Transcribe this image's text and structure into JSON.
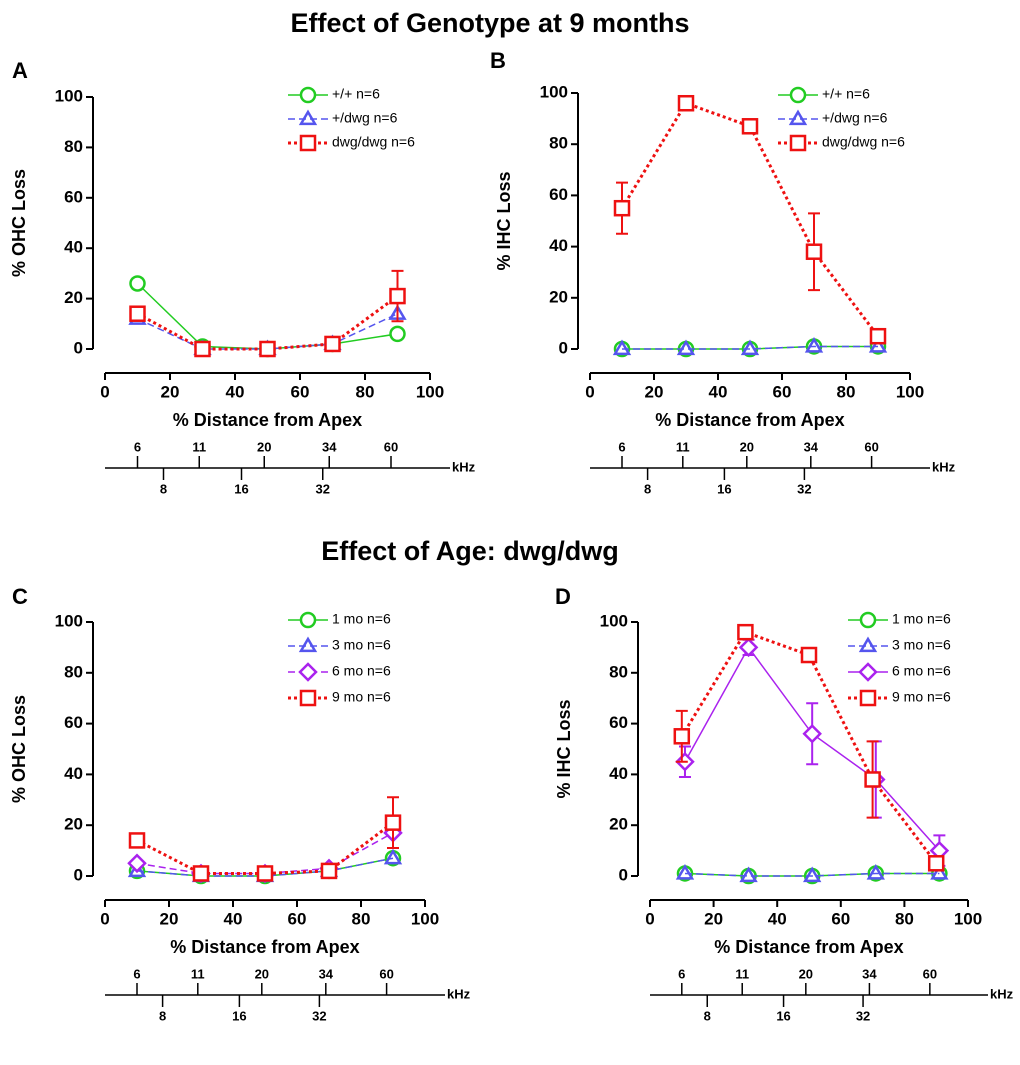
{
  "sections": [
    "Effect of Genotype at 9 months",
    "Effect of Age: dwg/dwg"
  ],
  "chart_data": [
    {
      "type": "line",
      "label": "A",
      "xlabel": "% Distance from Apex",
      "ylabel": "% OHC Loss",
      "xlim": [
        0,
        100
      ],
      "ylim": [
        0,
        100
      ],
      "xticks": [
        0,
        20,
        40,
        60,
        80,
        100
      ],
      "yticks": [
        0,
        20,
        40,
        60,
        80,
        100
      ],
      "khz_axis": {
        "label": "kHz",
        "upper": [
          {
            "value": 10,
            "label": "6"
          },
          {
            "value": 29,
            "label": "11"
          },
          {
            "value": 49,
            "label": "20"
          },
          {
            "value": 69,
            "label": "34"
          },
          {
            "value": 88,
            "label": "60"
          }
        ],
        "lower": [
          {
            "value": 18,
            "label": "8"
          },
          {
            "value": 42,
            "label": "16"
          },
          {
            "value": 67,
            "label": "32"
          }
        ]
      },
      "series": [
        {
          "name": "+/+ n=6",
          "color": "#22cc22",
          "marker": "circle",
          "dash": "solid",
          "x": [
            10,
            30,
            50,
            70,
            90
          ],
          "values": [
            26,
            1,
            0,
            2,
            6
          ],
          "errors": [
            2,
            0,
            0,
            0,
            0
          ]
        },
        {
          "name": "+/dwg n=6",
          "color": "#5555ee",
          "marker": "triangle",
          "dash": "dashed",
          "x": [
            10,
            30,
            50,
            70,
            90
          ],
          "values": [
            12,
            0,
            0,
            2,
            14
          ],
          "errors": [
            0,
            0,
            0,
            0,
            0
          ]
        },
        {
          "name": "dwg/dwg n=6",
          "color": "#ee1111",
          "marker": "square",
          "dash": "dotted",
          "x": [
            10,
            30,
            50,
            70,
            90
          ],
          "values": [
            14,
            0,
            0,
            2,
            21
          ],
          "errors": [
            0,
            0,
            0,
            0,
            10
          ]
        }
      ]
    },
    {
      "type": "line",
      "label": "B",
      "xlabel": "% Distance from Apex",
      "ylabel": "% IHC Loss",
      "xlim": [
        0,
        100
      ],
      "ylim": [
        0,
        100
      ],
      "xticks": [
        0,
        20,
        40,
        60,
        80,
        100
      ],
      "yticks": [
        0,
        20,
        40,
        60,
        80,
        100
      ],
      "khz_axis": {
        "label": "kHz",
        "upper": [
          {
            "value": 10,
            "label": "6"
          },
          {
            "value": 29,
            "label": "11"
          },
          {
            "value": 49,
            "label": "20"
          },
          {
            "value": 69,
            "label": "34"
          },
          {
            "value": 88,
            "label": "60"
          }
        ],
        "lower": [
          {
            "value": 18,
            "label": "8"
          },
          {
            "value": 42,
            "label": "16"
          },
          {
            "value": 67,
            "label": "32"
          }
        ]
      },
      "series": [
        {
          "name": "+/+ n=6",
          "color": "#22cc22",
          "marker": "circle",
          "dash": "solid",
          "x": [
            10,
            30,
            50,
            70,
            90
          ],
          "values": [
            0,
            0,
            0,
            1,
            1
          ],
          "errors": [
            0,
            0,
            0,
            0,
            0
          ]
        },
        {
          "name": "+/dwg n=6",
          "color": "#5555ee",
          "marker": "triangle",
          "dash": "dashed",
          "x": [
            10,
            30,
            50,
            70,
            90
          ],
          "values": [
            0,
            0,
            0,
            1,
            1
          ],
          "errors": [
            0,
            0,
            0,
            0,
            0
          ]
        },
        {
          "name": "dwg/dwg n=6",
          "color": "#ee1111",
          "marker": "square",
          "dash": "dotted",
          "x": [
            10,
            30,
            50,
            70,
            90
          ],
          "values": [
            55,
            96,
            87,
            38,
            5
          ],
          "errors": [
            10,
            0,
            0,
            15,
            0
          ]
        }
      ]
    },
    {
      "type": "line",
      "label": "C",
      "xlabel": "% Distance from Apex",
      "ylabel": "% OHC Loss",
      "xlim": [
        0,
        100
      ],
      "ylim": [
        0,
        100
      ],
      "xticks": [
        0,
        20,
        40,
        60,
        80,
        100
      ],
      "yticks": [
        0,
        20,
        40,
        60,
        80,
        100
      ],
      "khz_axis": {
        "label": "kHz",
        "upper": [
          {
            "value": 10,
            "label": "6"
          },
          {
            "value": 29,
            "label": "11"
          },
          {
            "value": 49,
            "label": "20"
          },
          {
            "value": 69,
            "label": "34"
          },
          {
            "value": 88,
            "label": "60"
          }
        ],
        "lower": [
          {
            "value": 18,
            "label": "8"
          },
          {
            "value": 42,
            "label": "16"
          },
          {
            "value": 67,
            "label": "32"
          }
        ]
      },
      "series": [
        {
          "name": "1 mo n=6",
          "color": "#22cc22",
          "marker": "circle",
          "dash": "solid",
          "x": [
            10,
            30,
            50,
            70,
            90
          ],
          "values": [
            2,
            0,
            0,
            2,
            7
          ],
          "errors": [
            0,
            0,
            0,
            0,
            0
          ]
        },
        {
          "name": "3 mo n=6",
          "color": "#5555ee",
          "marker": "triangle",
          "dash": "dashed",
          "x": [
            10,
            30,
            50,
            70,
            90
          ],
          "values": [
            2,
            0,
            0,
            2,
            7
          ],
          "errors": [
            0,
            0,
            0,
            0,
            0
          ]
        },
        {
          "name": "6 mo n=6",
          "color": "#aa22ee",
          "marker": "diamond",
          "dash": "dashed",
          "x": [
            10,
            30,
            50,
            70,
            90
          ],
          "values": [
            5,
            1,
            1,
            3,
            17
          ],
          "errors": [
            0,
            0,
            0,
            0,
            6
          ]
        },
        {
          "name": "9 mo n=6",
          "color": "#ee1111",
          "marker": "square",
          "dash": "dotted",
          "x": [
            10,
            30,
            50,
            70,
            90
          ],
          "values": [
            14,
            1,
            1,
            2,
            21
          ],
          "errors": [
            0,
            0,
            0,
            0,
            10
          ]
        }
      ]
    },
    {
      "type": "line",
      "label": "D",
      "xlabel": "% Distance from Apex",
      "ylabel": "% IHC Loss",
      "xlim": [
        0,
        100
      ],
      "ylim": [
        0,
        100
      ],
      "xticks": [
        0,
        20,
        40,
        60,
        80,
        100
      ],
      "yticks": [
        0,
        20,
        40,
        60,
        80,
        100
      ],
      "khz_axis": {
        "label": "kHz",
        "upper": [
          {
            "value": 10,
            "label": "6"
          },
          {
            "value": 29,
            "label": "11"
          },
          {
            "value": 49,
            "label": "20"
          },
          {
            "value": 69,
            "label": "34"
          },
          {
            "value": 88,
            "label": "60"
          }
        ],
        "lower": [
          {
            "value": 18,
            "label": "8"
          },
          {
            "value": 42,
            "label": "16"
          },
          {
            "value": 67,
            "label": "32"
          }
        ]
      },
      "series": [
        {
          "name": "1 mo n=6",
          "color": "#22cc22",
          "marker": "circle",
          "dash": "solid",
          "x": [
            11,
            31,
            51,
            71,
            91
          ],
          "values": [
            1,
            0,
            0,
            1,
            1
          ],
          "errors": [
            0,
            0,
            0,
            0,
            0
          ]
        },
        {
          "name": "3 mo n=6",
          "color": "#5555ee",
          "marker": "triangle",
          "dash": "dashed",
          "x": [
            11,
            31,
            51,
            71,
            91
          ],
          "values": [
            1,
            0,
            0,
            1,
            1
          ],
          "errors": [
            0,
            0,
            0,
            0,
            0
          ]
        },
        {
          "name": "6 mo n=6",
          "color": "#aa22ee",
          "marker": "diamond",
          "dash": "solid",
          "x": [
            11,
            31,
            51,
            71,
            91
          ],
          "values": [
            45,
            90,
            56,
            38,
            10
          ],
          "errors": [
            6,
            3,
            12,
            15,
            6
          ]
        },
        {
          "name": "9 mo n=6",
          "color": "#ee1111",
          "marker": "square",
          "dash": "dotted",
          "x": [
            10,
            30,
            50,
            70,
            90
          ],
          "values": [
            55,
            96,
            87,
            38,
            5
          ],
          "errors": [
            10,
            0,
            0,
            15,
            0
          ]
        }
      ]
    }
  ]
}
